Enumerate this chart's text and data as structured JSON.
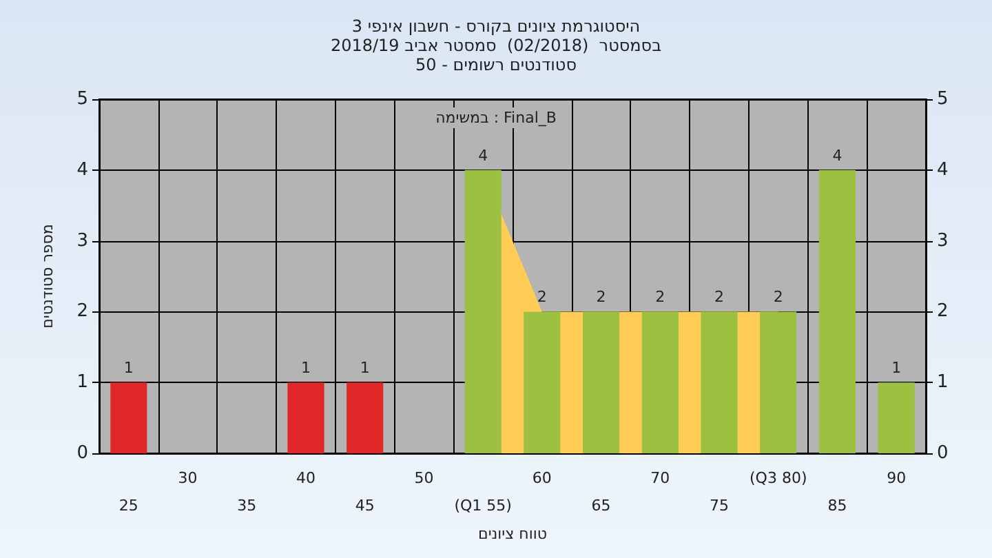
{
  "chart_data": {
    "type": "bar",
    "title": "היסטוגרמת ציונים בקורס - חשבון אינפי 3",
    "subtitle": "בסמסטר  (02/2018)  סמסטר אביב 2018/19\nסטודנטים רשומים - 50",
    "xlabel": "טווח ציונים",
    "ylabel": "מספר סטודנטים",
    "annotations": [
      "במשימה : Final_B"
    ],
    "categories": [
      "25",
      "30",
      "35",
      "40",
      "45",
      "50",
      "(Q1 55)",
      "60",
      "65",
      "70",
      "75",
      "(Q3 80)",
      "85",
      "90"
    ],
    "series": [
      {
        "type": "area",
        "color": "#ffcc55",
        "values": [
          null,
          null,
          null,
          null,
          null,
          null,
          4,
          2,
          2,
          2,
          2,
          2,
          null,
          null
        ]
      },
      {
        "colors": [
          "#e02828",
          "#9cc040",
          "#9cc040",
          "#e02828",
          "#e02828",
          "#9cc040",
          "#9cc040",
          "#9cc040",
          "#9cc040",
          "#9cc040",
          "#9cc040",
          "#9cc040",
          "#9cc040",
          "#9cc040"
        ],
        "values": [
          1,
          0,
          0,
          1,
          1,
          0,
          4,
          2,
          2,
          2,
          2,
          2,
          4,
          1
        ],
        "value_labels": [
          "1",
          null,
          null,
          "1",
          "1",
          null,
          "4",
          "2",
          "2",
          "2",
          "2",
          "2",
          "4",
          "1"
        ]
      }
    ],
    "ylim": [
      0,
      5
    ],
    "yticks": [
      0,
      1,
      2,
      3,
      4,
      5
    ],
    "y2lim": [
      0,
      5
    ],
    "y2ticks": [
      0,
      1,
      2,
      3,
      4,
      5
    ],
    "grid": true
  }
}
